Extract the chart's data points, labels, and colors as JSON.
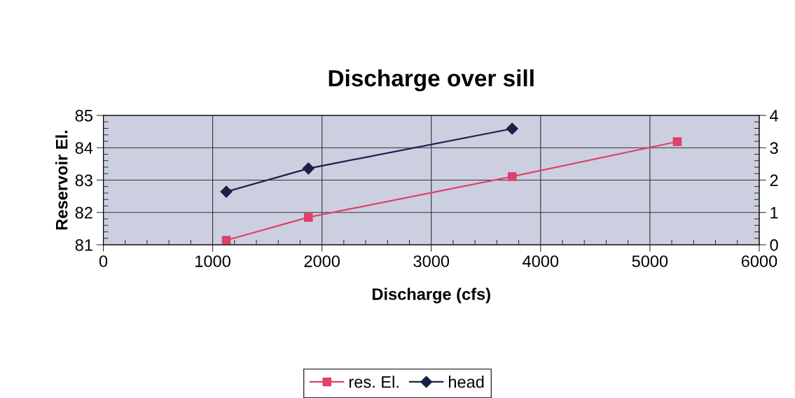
{
  "chart_data": {
    "type": "line",
    "title": "Discharge over sill",
    "xlabel": "Discharge (cfs)",
    "ylabel": "Reservoir El.",
    "xlim": [
      0,
      6000
    ],
    "xticks": [
      0,
      1000,
      2000,
      3000,
      4000,
      5000,
      6000
    ],
    "ylim": [
      81,
      85
    ],
    "yticks": [
      81,
      82,
      83,
      84,
      85
    ],
    "y2lim": [
      0,
      4
    ],
    "y2ticks": [
      0,
      1,
      2,
      3,
      4
    ],
    "grid": true,
    "legend": "bottom",
    "series": [
      {
        "name": "res. El.",
        "color": "#e0406a",
        "marker": "square",
        "x": [
          1125,
          1876,
          3740,
          5250
        ],
        "values": [
          81.14,
          81.85,
          83.11,
          84.19
        ]
      },
      {
        "name": "head",
        "color": "#1c1f4a",
        "marker": "diamond",
        "axis": "y2",
        "x": [
          1125,
          1876,
          3740
        ],
        "values": [
          1.64,
          2.36,
          3.59
        ]
      }
    ]
  }
}
